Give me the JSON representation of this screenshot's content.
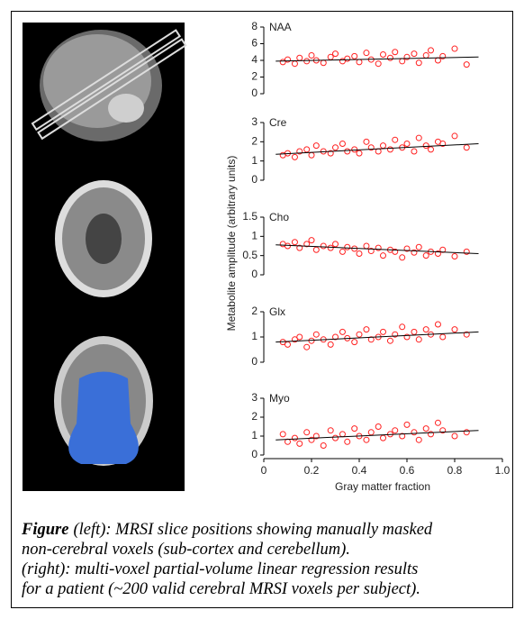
{
  "figure": {
    "ylabel": "Metabolite amplitude (arbitrary units)",
    "xlabel": "Gray matter fraction",
    "caption": {
      "label": "Figure",
      "lines": [
        "(left): MRSI slice positions showing manually masked",
        "non-cerebral voxels (sub-cortex and cerebellum).",
        "(right): multi-voxel partial-volume linear regression results",
        "for a patient (~200 valid cerebral MRSI voxels per subject)."
      ]
    }
  },
  "chart_data": [
    {
      "type": "scatter",
      "label": "NAA",
      "color": "#ff2020",
      "xlim": [
        0,
        1
      ],
      "ylim": [
        0,
        8
      ],
      "yticks": [
        0,
        2,
        4,
        6,
        8
      ],
      "x": [
        0.08,
        0.1,
        0.13,
        0.15,
        0.18,
        0.2,
        0.22,
        0.25,
        0.28,
        0.3,
        0.33,
        0.35,
        0.38,
        0.4,
        0.43,
        0.45,
        0.48,
        0.5,
        0.53,
        0.55,
        0.58,
        0.6,
        0.63,
        0.65,
        0.68,
        0.7,
        0.73,
        0.75,
        0.8,
        0.85
      ],
      "values": [
        3.8,
        4.1,
        3.6,
        4.3,
        3.9,
        4.6,
        4.0,
        3.7,
        4.4,
        4.8,
        3.9,
        4.2,
        4.5,
        3.8,
        4.9,
        4.1,
        3.6,
        4.7,
        4.3,
        5.0,
        3.9,
        4.4,
        4.8,
        3.7,
        4.6,
        5.2,
        4.0,
        4.5,
        5.4,
        3.5
      ],
      "fit": {
        "x": [
          0.05,
          0.9
        ],
        "values": [
          3.9,
          4.4
        ]
      }
    },
    {
      "type": "scatter",
      "label": "Cre",
      "color": "#ff2020",
      "xlim": [
        0,
        1
      ],
      "ylim": [
        0,
        3
      ],
      "yticks": [
        0,
        1,
        2,
        3
      ],
      "x": [
        0.08,
        0.1,
        0.13,
        0.15,
        0.18,
        0.2,
        0.22,
        0.25,
        0.28,
        0.3,
        0.33,
        0.35,
        0.38,
        0.4,
        0.43,
        0.45,
        0.48,
        0.5,
        0.53,
        0.55,
        0.58,
        0.6,
        0.63,
        0.65,
        0.68,
        0.7,
        0.73,
        0.75,
        0.8,
        0.85
      ],
      "values": [
        1.3,
        1.4,
        1.2,
        1.5,
        1.6,
        1.3,
        1.8,
        1.5,
        1.4,
        1.7,
        1.9,
        1.5,
        1.6,
        1.4,
        2.0,
        1.7,
        1.5,
        1.8,
        1.6,
        2.1,
        1.7,
        1.9,
        1.5,
        2.2,
        1.8,
        1.6,
        2.0,
        1.9,
        2.3,
        1.7
      ],
      "fit": {
        "x": [
          0.05,
          0.9
        ],
        "values": [
          1.35,
          1.9
        ]
      }
    },
    {
      "type": "scatter",
      "label": "Cho",
      "color": "#ff2020",
      "xlim": [
        0,
        1
      ],
      "ylim": [
        0,
        1.5
      ],
      "yticks": [
        0,
        0.5,
        1,
        1.5
      ],
      "x": [
        0.08,
        0.1,
        0.13,
        0.15,
        0.18,
        0.2,
        0.22,
        0.25,
        0.28,
        0.3,
        0.33,
        0.35,
        0.38,
        0.4,
        0.43,
        0.45,
        0.48,
        0.5,
        0.53,
        0.55,
        0.58,
        0.6,
        0.63,
        0.65,
        0.68,
        0.7,
        0.73,
        0.75,
        0.8,
        0.85
      ],
      "values": [
        0.8,
        0.75,
        0.85,
        0.7,
        0.8,
        0.9,
        0.65,
        0.75,
        0.7,
        0.8,
        0.6,
        0.72,
        0.68,
        0.55,
        0.75,
        0.62,
        0.7,
        0.5,
        0.65,
        0.6,
        0.45,
        0.68,
        0.58,
        0.72,
        0.5,
        0.6,
        0.55,
        0.65,
        0.48,
        0.6
      ],
      "fit": {
        "x": [
          0.05,
          0.9
        ],
        "values": [
          0.78,
          0.55
        ]
      }
    },
    {
      "type": "scatter",
      "label": "Glx",
      "color": "#ff2020",
      "xlim": [
        0,
        1
      ],
      "ylim": [
        0,
        2
      ],
      "yticks": [
        0,
        1,
        2
      ],
      "x": [
        0.08,
        0.1,
        0.13,
        0.15,
        0.18,
        0.2,
        0.22,
        0.25,
        0.28,
        0.3,
        0.33,
        0.35,
        0.38,
        0.4,
        0.43,
        0.45,
        0.48,
        0.5,
        0.53,
        0.55,
        0.58,
        0.6,
        0.63,
        0.65,
        0.68,
        0.7,
        0.73,
        0.75,
        0.8,
        0.85
      ],
      "values": [
        0.8,
        0.7,
        0.9,
        1.0,
        0.6,
        0.85,
        1.1,
        0.9,
        0.7,
        1.0,
        1.2,
        0.95,
        0.8,
        1.1,
        1.3,
        0.9,
        1.0,
        1.2,
        0.85,
        1.1,
        1.4,
        1.0,
        1.2,
        0.9,
        1.3,
        1.1,
        1.5,
        1.0,
        1.3,
        1.1
      ],
      "fit": {
        "x": [
          0.05,
          0.9
        ],
        "values": [
          0.8,
          1.2
        ]
      }
    },
    {
      "type": "scatter",
      "label": "Myo",
      "color": "#ff2020",
      "xlim": [
        0,
        1
      ],
      "ylim": [
        0,
        3
      ],
      "yticks": [
        0,
        1,
        2,
        3
      ],
      "x": [
        0.08,
        0.1,
        0.13,
        0.15,
        0.18,
        0.2,
        0.22,
        0.25,
        0.28,
        0.3,
        0.33,
        0.35,
        0.38,
        0.4,
        0.43,
        0.45,
        0.48,
        0.5,
        0.53,
        0.55,
        0.58,
        0.6,
        0.63,
        0.65,
        0.68,
        0.7,
        0.73,
        0.75,
        0.8,
        0.85
      ],
      "values": [
        1.1,
        0.7,
        0.9,
        0.6,
        1.2,
        0.8,
        1.0,
        0.5,
        1.3,
        0.9,
        1.1,
        0.7,
        1.4,
        1.0,
        0.8,
        1.2,
        1.5,
        0.9,
        1.1,
        1.3,
        1.0,
        1.6,
        1.2,
        0.8,
        1.4,
        1.1,
        1.7,
        1.3,
        1.0,
        1.2
      ],
      "fit": {
        "x": [
          0.05,
          0.9
        ],
        "values": [
          0.8,
          1.3
        ]
      },
      "xticks": [
        0,
        0.2,
        0.4,
        0.6,
        0.8,
        {
          "value": 1,
          "label": "1.0"
        }
      ]
    }
  ]
}
